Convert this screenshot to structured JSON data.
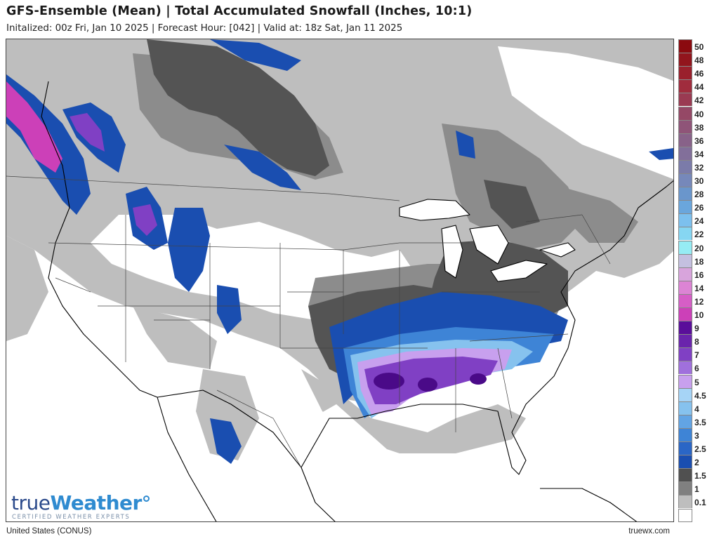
{
  "header": {
    "title": "GFS-Ensemble (Mean) | Total Accumulated Snowfall (Inches, 10:1)",
    "subtitle": "Initalized: 00z Fri, Jan 10 2025 | Forecast Hour: [042] | Valid at: 18z Sat, Jan 11 2025"
  },
  "footer": {
    "region": "United States (CONUS)",
    "site": "truewx.com"
  },
  "branding": {
    "logo_part1": "true",
    "logo_part2": "Weather",
    "tagline": "CERTIFIED WEATHER EXPERTS"
  },
  "legend": {
    "items": [
      {
        "label": "50",
        "color": "#8b0a0f"
      },
      {
        "label": "48",
        "color": "#92151d"
      },
      {
        "label": "46",
        "color": "#9a202c"
      },
      {
        "label": "44",
        "color": "#a02c3d"
      },
      {
        "label": "42",
        "color": "#9a3a52"
      },
      {
        "label": "40",
        "color": "#954866"
      },
      {
        "label": "38",
        "color": "#8f5478"
      },
      {
        "label": "36",
        "color": "#886289"
      },
      {
        "label": "34",
        "color": "#826f9a"
      },
      {
        "label": "32",
        "color": "#7b7ba9"
      },
      {
        "label": "30",
        "color": "#7688ba"
      },
      {
        "label": "28",
        "color": "#6a96cc"
      },
      {
        "label": "26",
        "color": "#6aa6dc"
      },
      {
        "label": "24",
        "color": "#7cc0ee"
      },
      {
        "label": "22",
        "color": "#86d6f2"
      },
      {
        "label": "20",
        "color": "#96ecf4"
      },
      {
        "label": "18",
        "color": "#c4c0e0"
      },
      {
        "label": "16",
        "color": "#d8a4dc"
      },
      {
        "label": "14",
        "color": "#dc84d4"
      },
      {
        "label": "12",
        "color": "#d65ec6"
      },
      {
        "label": "10",
        "color": "#cc40b8"
      },
      {
        "label": "9",
        "color": "#5a0e9a"
      },
      {
        "label": "8",
        "color": "#6a24ac"
      },
      {
        "label": "7",
        "color": "#8040c4"
      },
      {
        "label": "6",
        "color": "#a070dc"
      },
      {
        "label": "5",
        "color": "#c8a0ee"
      },
      {
        "label": "4.5",
        "color": "#a6d4f6"
      },
      {
        "label": "4",
        "color": "#86c2ee"
      },
      {
        "label": "3.5",
        "color": "#62a4e4"
      },
      {
        "label": "3",
        "color": "#3e84d6"
      },
      {
        "label": "2.5",
        "color": "#2a66c6"
      },
      {
        "label": "2",
        "color": "#1a4eb0"
      },
      {
        "label": "1.5",
        "color": "#505050"
      },
      {
        "label": "1",
        "color": "#808080"
      },
      {
        "label": "0.1",
        "color": "#bebebe"
      },
      {
        "label": "",
        "color": "#ffffff"
      }
    ]
  },
  "map": {
    "colors": {
      "light_gray": "#bebebe",
      "mid_gray": "#8c8c8c",
      "dark_gray": "#545454",
      "blue_dark": "#1a4eb0",
      "blue": "#3e84d6",
      "blue_light": "#86c2ee",
      "lavender": "#c8a0ee",
      "purple": "#8040c4",
      "purple_dark": "#4a0a88",
      "magenta": "#cc40b8",
      "outline": "#000000"
    }
  }
}
